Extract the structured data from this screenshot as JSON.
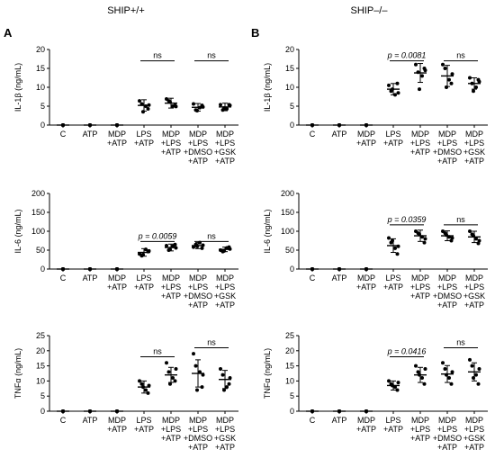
{
  "figure": {
    "columns": [
      {
        "letter": "A",
        "title": "SHIP+/+"
      },
      {
        "letter": "B",
        "title": "SHIP–/–"
      }
    ]
  },
  "chart_data": [
    {
      "type": "scatter",
      "column": "A",
      "row": 0,
      "ylabel": "IL-1β (ng/mL)",
      "ylim": [
        0,
        20
      ],
      "yticks": [
        0,
        5,
        10,
        15,
        20
      ],
      "categories": [
        [
          "C"
        ],
        [
          "ATP"
        ],
        [
          "MDP",
          "+ATP"
        ],
        [
          "LPS",
          "+ATP"
        ],
        [
          "MDP",
          "+LPS",
          "+ATP"
        ],
        [
          "MDP",
          "+LPS",
          "+DMSO",
          "+ATP"
        ],
        [
          "MDP",
          "+LPS",
          "+GSK",
          "+ATP"
        ]
      ],
      "groups": [
        {
          "mean": 0,
          "sd": 0,
          "points": [
            0,
            0,
            0,
            0,
            0,
            0
          ]
        },
        {
          "mean": 0,
          "sd": 0,
          "points": [
            0,
            0,
            0,
            0,
            0,
            0
          ]
        },
        {
          "mean": 0,
          "sd": 0,
          "points": [
            0,
            0,
            0,
            0,
            0,
            0
          ]
        },
        {
          "mean": 5.2,
          "sd": 1.5,
          "points": [
            6.4,
            5.6,
            5.0,
            4.3,
            3.5,
            5.3
          ]
        },
        {
          "mean": 5.8,
          "sd": 1.3,
          "points": [
            6.9,
            6.4,
            5.0,
            5.2,
            6.1,
            4.9
          ]
        },
        {
          "mean": 4.7,
          "sd": 1.0,
          "points": [
            5.6,
            4.0,
            4.6,
            5.2,
            3.8,
            4.8
          ]
        },
        {
          "mean": 4.8,
          "sd": 1.0,
          "points": [
            5.4,
            4.0,
            4.3,
            5.4,
            4.5,
            5.2
          ]
        }
      ],
      "brackets": [
        {
          "from": 4,
          "to": 5,
          "label": "ns",
          "y": 17
        },
        {
          "from": 6,
          "to": 7,
          "label": "ns",
          "y": 17
        }
      ]
    },
    {
      "type": "scatter",
      "column": "A",
      "row": 1,
      "ylabel": "IL-6 (ng/mL)",
      "ylim": [
        0,
        200
      ],
      "yticks": [
        0,
        50,
        100,
        150,
        200
      ],
      "categories": [
        [
          "C"
        ],
        [
          "ATP"
        ],
        [
          "MDP",
          "+ATP"
        ],
        [
          "LPS",
          "+ATP"
        ],
        [
          "MDP",
          "+LPS",
          "+ATP"
        ],
        [
          "MDP",
          "+LPS",
          "+DMSO",
          "+ATP"
        ],
        [
          "MDP",
          "+LPS",
          "+GSK",
          "+ATP"
        ]
      ],
      "groups": [
        {
          "mean": 0,
          "sd": 0,
          "points": [
            0,
            0,
            0,
            0,
            0,
            0
          ]
        },
        {
          "mean": 0,
          "sd": 0,
          "points": [
            0,
            0,
            0,
            0,
            0,
            0
          ]
        },
        {
          "mean": 0,
          "sd": 0,
          "points": [
            0,
            0,
            0,
            0,
            0,
            0
          ]
        },
        {
          "mean": 44,
          "sd": 10,
          "points": [
            40,
            35,
            52,
            46,
            38,
            48
          ]
        },
        {
          "mean": 57,
          "sd": 9,
          "points": [
            62,
            50,
            60,
            65,
            52,
            56
          ]
        },
        {
          "mean": 62,
          "sd": 8,
          "points": [
            58,
            65,
            70,
            55,
            60,
            63
          ]
        },
        {
          "mean": 52,
          "sd": 6,
          "points": [
            50,
            46,
            56,
            58,
            48,
            53
          ]
        }
      ],
      "brackets": [
        {
          "from": 4,
          "to": 5,
          "label": "p = 0.0059",
          "y": 73
        },
        {
          "from": 6,
          "to": 7,
          "label": "ns",
          "y": 73
        }
      ]
    },
    {
      "type": "scatter",
      "column": "A",
      "row": 2,
      "ylabel": "TNFα (ng/mL)",
      "ylim": [
        0,
        25
      ],
      "yticks": [
        0,
        5,
        10,
        15,
        20,
        25
      ],
      "categories": [
        [
          "C"
        ],
        [
          "ATP"
        ],
        [
          "MDP",
          "+ATP"
        ],
        [
          "LPS",
          "+ATP"
        ],
        [
          "MDP",
          "+LPS",
          "+ATP"
        ],
        [
          "MDP",
          "+LPS",
          "+DMSO",
          "+ATP"
        ],
        [
          "MDP",
          "+LPS",
          "+GSK",
          "+ATP"
        ]
      ],
      "groups": [
        {
          "mean": 0,
          "sd": 0,
          "points": [
            0,
            0,
            0,
            0,
            0,
            0
          ]
        },
        {
          "mean": 0,
          "sd": 0,
          "points": [
            0,
            0,
            0,
            0,
            0,
            0
          ]
        },
        {
          "mean": 0,
          "sd": 0,
          "points": [
            0,
            0,
            0,
            0,
            0,
            0
          ]
        },
        {
          "mean": 8,
          "sd": 2,
          "points": [
            10,
            9,
            7,
            6,
            8,
            8.5
          ]
        },
        {
          "mean": 12,
          "sd": 2.5,
          "points": [
            16,
            13,
            11,
            10,
            9,
            14
          ]
        },
        {
          "mean": 12.5,
          "sd": 4.5,
          "points": [
            19,
            15,
            13,
            8,
            7,
            12
          ]
        },
        {
          "mean": 10.5,
          "sd": 3,
          "points": [
            14,
            12,
            8,
            9,
            7,
            11
          ]
        }
      ],
      "brackets": [
        {
          "from": 4,
          "to": 5,
          "label": "ns",
          "y": 18
        },
        {
          "from": 6,
          "to": 7,
          "label": "ns",
          "y": 21
        }
      ]
    },
    {
      "type": "scatter",
      "column": "B",
      "row": 0,
      "ylabel": "IL-1β (ng/mL)",
      "ylim": [
        0,
        20
      ],
      "yticks": [
        0,
        5,
        10,
        15,
        20
      ],
      "categories": [
        [
          "C"
        ],
        [
          "ATP"
        ],
        [
          "MDP",
          "+ATP"
        ],
        [
          "LPS",
          "+ATP"
        ],
        [
          "MDP",
          "+LPS",
          "+ATP"
        ],
        [
          "MDP",
          "+LPS",
          "+DMSO",
          "+ATP"
        ],
        [
          "MDP",
          "+LPS",
          "+GSK",
          "+ATP"
        ]
      ],
      "groups": [
        {
          "mean": 0,
          "sd": 0,
          "points": [
            0,
            0,
            0,
            0,
            0,
            0
          ]
        },
        {
          "mean": 0,
          "sd": 0,
          "points": [
            0,
            0,
            0,
            0,
            0,
            0
          ]
        },
        {
          "mean": 0,
          "sd": 0,
          "points": [
            0,
            0,
            0,
            0,
            0,
            0
          ]
        },
        {
          "mean": 9.5,
          "sd": 1.5,
          "points": [
            10.5,
            9,
            8,
            11,
            9.5,
            8.5
          ]
        },
        {
          "mean": 13.8,
          "sd": 2.5,
          "points": [
            16,
            14,
            13,
            15,
            9.5,
            14.5
          ]
        },
        {
          "mean": 13,
          "sd": 2.8,
          "points": [
            16,
            15,
            12,
            11,
            10,
            13.5
          ]
        },
        {
          "mean": 11,
          "sd": 1.5,
          "points": [
            12.5,
            11,
            10,
            12,
            9,
            11.5
          ]
        }
      ],
      "brackets": [
        {
          "from": 4,
          "to": 5,
          "label": "p = 0.0081",
          "y": 17
        },
        {
          "from": 6,
          "to": 7,
          "label": "ns",
          "y": 17
        }
      ]
    },
    {
      "type": "scatter",
      "column": "B",
      "row": 1,
      "ylabel": "IL-6 (ng/mL)",
      "ylim": [
        0,
        200
      ],
      "yticks": [
        0,
        50,
        100,
        150,
        200
      ],
      "categories": [
        [
          "C"
        ],
        [
          "ATP"
        ],
        [
          "MDP",
          "+ATP"
        ],
        [
          "LPS",
          "+ATP"
        ],
        [
          "MDP",
          "+LPS",
          "+ATP"
        ],
        [
          "MDP",
          "+LPS",
          "+DMSO",
          "+ATP"
        ],
        [
          "MDP",
          "+LPS",
          "+GSK",
          "+ATP"
        ]
      ],
      "groups": [
        {
          "mean": 0,
          "sd": 0,
          "points": [
            0,
            0,
            0,
            0,
            0,
            0
          ]
        },
        {
          "mean": 0,
          "sd": 0,
          "points": [
            0,
            0,
            0,
            0,
            0,
            0
          ]
        },
        {
          "mean": 0,
          "sd": 0,
          "points": [
            0,
            0,
            0,
            0,
            0,
            0
          ]
        },
        {
          "mean": 62,
          "sd": 18,
          "points": [
            82,
            70,
            55,
            40,
            75,
            60
          ]
        },
        {
          "mean": 88,
          "sd": 15,
          "points": [
            100,
            95,
            85,
            70,
            92,
            80
          ]
        },
        {
          "mean": 88,
          "sd": 13,
          "points": [
            100,
            95,
            85,
            75,
            90,
            82
          ]
        },
        {
          "mean": 85,
          "sd": 15,
          "points": [
            100,
            92,
            80,
            68,
            88,
            75
          ]
        }
      ],
      "brackets": [
        {
          "from": 4,
          "to": 5,
          "label": "p = 0.0359",
          "y": 117
        },
        {
          "from": 6,
          "to": 7,
          "label": "ns",
          "y": 117
        }
      ]
    },
    {
      "type": "scatter",
      "column": "B",
      "row": 2,
      "ylabel": "TNFα (ng/mL)",
      "ylim": [
        0,
        25
      ],
      "yticks": [
        0,
        5,
        10,
        15,
        20,
        25
      ],
      "categories": [
        [
          "C"
        ],
        [
          "ATP"
        ],
        [
          "MDP",
          "+ATP"
        ],
        [
          "LPS",
          "+ATP"
        ],
        [
          "MDP",
          "+LPS",
          "+ATP"
        ],
        [
          "MDP",
          "+LPS",
          "+DMSO",
          "+ATP"
        ],
        [
          "MDP",
          "+LPS",
          "+GSK",
          "+ATP"
        ]
      ],
      "groups": [
        {
          "mean": 0,
          "sd": 0,
          "points": [
            0,
            0,
            0,
            0,
            0,
            0
          ]
        },
        {
          "mean": 0,
          "sd": 0,
          "points": [
            0,
            0,
            0,
            0,
            0,
            0
          ]
        },
        {
          "mean": 0,
          "sd": 0,
          "points": [
            0,
            0,
            0,
            0,
            0,
            0
          ]
        },
        {
          "mean": 8.5,
          "sd": 1.5,
          "points": [
            10,
            9,
            8,
            7,
            8.5,
            9.5
          ]
        },
        {
          "mean": 12,
          "sd": 2.5,
          "points": [
            15,
            13,
            11,
            9,
            12,
            14
          ]
        },
        {
          "mean": 12.3,
          "sd": 2.8,
          "points": [
            16,
            14,
            11,
            9,
            12,
            13
          ]
        },
        {
          "mean": 13,
          "sd": 3,
          "points": [
            17,
            15,
            12,
            9,
            11,
            14
          ]
        }
      ],
      "brackets": [
        {
          "from": 4,
          "to": 5,
          "label": "p = 0.0416",
          "y": 18
        },
        {
          "from": 6,
          "to": 7,
          "label": "ns",
          "y": 21
        }
      ]
    }
  ]
}
